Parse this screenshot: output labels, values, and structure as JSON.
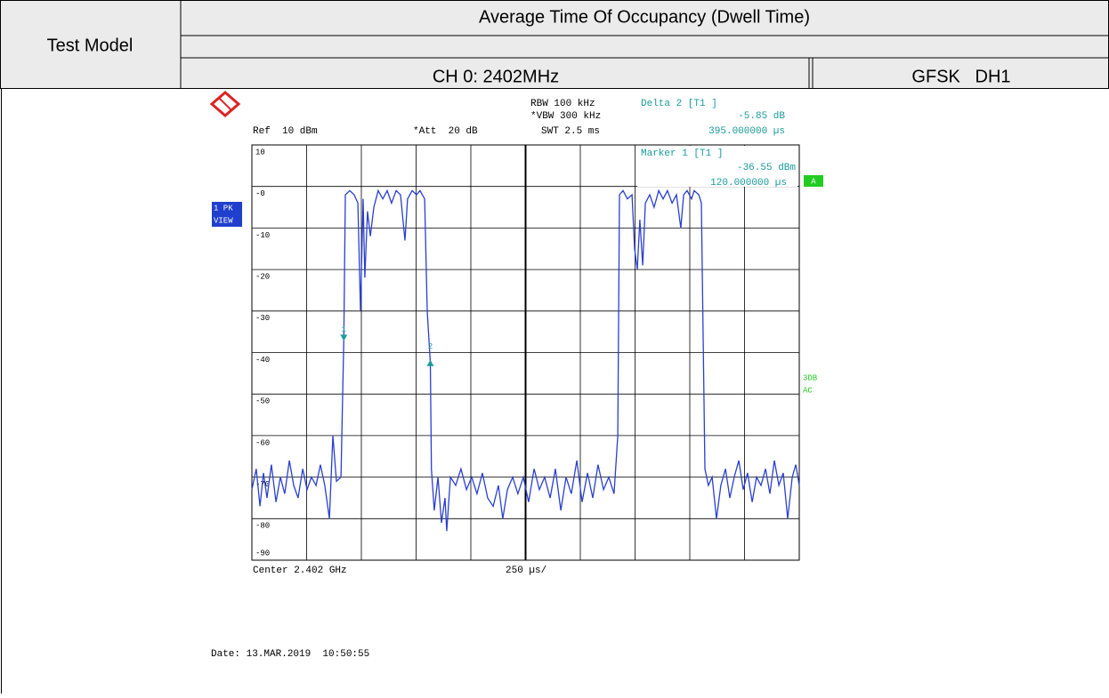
{
  "header": {
    "left": "Test Model",
    "title": "Average Time Of Occupancy (Dwell Time)",
    "channel": "CH 0: 2402MHz",
    "mode": "GFSK   DH1"
  },
  "instrument": {
    "rbw": "RBW 100 kHz",
    "vbw": "*VBW 300 kHz",
    "swt": "SWT 2.5 ms",
    "ref": "Ref  10 dBm",
    "att": "*Att  20 dB",
    "delta_title": "Delta 2 [T1 ]",
    "delta_level": "-5.85 dB",
    "delta_time": "395.000000 µs",
    "marker_title": "Marker 1 [T1 ]",
    "marker_level": "-36.55 dBm",
    "marker_time": "120.000000 µs",
    "trace_box": [
      "1 PK",
      "VIEW"
    ],
    "a_box": "A",
    "side_note": [
      "3DB",
      "AC"
    ],
    "center": "Center 2.402 GHz",
    "span": "250 µs/",
    "date": "Date: 13.MAR.2019  10:50:55"
  },
  "chart_data": {
    "type": "line",
    "x": [
      -300,
      -280,
      -263,
      -247,
      -231,
      -211,
      -190,
      -170,
      -150,
      -129,
      -109,
      -89,
      -68,
      -48,
      -28,
      -7,
      13,
      33,
      54,
      70,
      86,
      107,
      120,
      127,
      147,
      167,
      184,
      196,
      208,
      216,
      228,
      241,
      257,
      277,
      298,
      318,
      338,
      359,
      379,
      399,
      411,
      432,
      452,
      468,
      489,
      501,
      515,
      520,
      533,
      550,
      566,
      582,
      590,
      607,
      631,
      655,
      680,
      704,
      728,
      753,
      777,
      802,
      826,
      846,
      867,
      891,
      915,
      940,
      964,
      989,
      1013,
      1037,
      1062,
      1086,
      1111,
      1135,
      1159,
      1184,
      1208,
      1233,
      1257,
      1281,
      1306,
      1330,
      1354,
      1371,
      1379,
      1395,
      1415,
      1436,
      1448,
      1460,
      1472,
      1485,
      1497,
      1517,
      1537,
      1558,
      1578,
      1598,
      1619,
      1639,
      1659,
      1672,
      1688,
      1708,
      1720,
      1741,
      1753,
      1769,
      1785,
      1802,
      1822,
      1842,
      1863,
      1883,
      1903,
      1924,
      1944,
      1964,
      1985,
      2005,
      2025,
      2046,
      2066,
      2086,
      2107,
      2127,
      2147,
      2168,
      2184,
      2200
    ],
    "series": [
      {
        "name": "1 PK",
        "color": "#2a3fd0",
        "values": [
          -73,
          -68,
          -77,
          -69,
          -75,
          -67,
          -76,
          -70,
          -74,
          -66,
          -72,
          -75,
          -68,
          -73,
          -70,
          -72,
          -67,
          -72,
          -80,
          -60,
          -71,
          -70,
          -36.55,
          -2,
          -1,
          -2,
          -4,
          -30,
          -3,
          -22,
          -6,
          -12,
          -5,
          -1,
          -3,
          -1,
          -4,
          -1,
          -2,
          -13,
          -3,
          -1,
          -2,
          -1,
          -3,
          -30,
          -42.4,
          -68,
          -78,
          -70,
          -81,
          -75,
          -83,
          -70,
          -72,
          -68,
          -73,
          -70,
          -74,
          -69,
          -75,
          -77,
          -72,
          -80,
          -73,
          -70,
          -74,
          -70,
          -76,
          -68,
          -73,
          -70,
          -75,
          -68,
          -78,
          -70,
          -74,
          -66,
          -76,
          -69,
          -75,
          -67,
          -73,
          -70,
          -74,
          -60,
          -2,
          -1,
          -3,
          -2,
          -15,
          -20,
          -8,
          -19,
          -4,
          -2,
          -5,
          -1,
          -3,
          -1,
          -4,
          -2,
          -10,
          -2,
          -1,
          -3,
          -1,
          -2,
          -4,
          -68,
          -72,
          -70,
          -80,
          -72,
          -68,
          -75,
          -70,
          -66,
          -73,
          -69,
          -76,
          -70,
          -72,
          -68,
          -74,
          -66,
          -72,
          -69,
          -80,
          -70,
          -67,
          -72
        ]
      }
    ],
    "markers": [
      {
        "label": "1",
        "x": 120,
        "y": -36.55,
        "direction": "down"
      },
      {
        "label": "2",
        "x": 515,
        "y": -42.4,
        "direction": "up"
      }
    ],
    "marker_color": "#1a9a9a",
    "xlim": [
      -300,
      2200
    ],
    "xticks": [
      -300,
      -50,
      200,
      450,
      700,
      950,
      1200,
      1450,
      1700,
      1950,
      2200
    ],
    "ylim": [
      -90,
      10
    ],
    "yticks": [
      10,
      {
        "value": 0,
        "label": "-0"
      },
      -10,
      -20,
      -30,
      -40,
      -50,
      -60,
      -70,
      -80,
      -90
    ],
    "grid": true
  }
}
